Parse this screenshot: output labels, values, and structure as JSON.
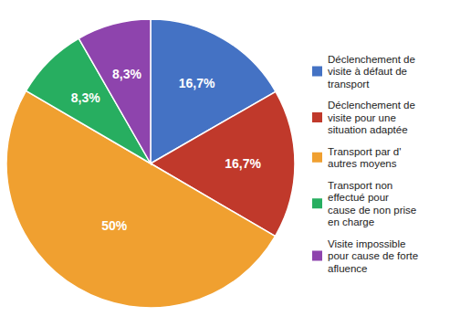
{
  "chart_data": {
    "type": "pie",
    "categories": [
      "Déclenchement de\nvisite à défaut de\ntransport",
      "Déclenchement de\nvisite pour une\nsituation adaptée",
      "Transport par d'\nautres moyens",
      "Transport non\neffectué pour\ncause de non prise\nen charge",
      "Visite impossible\npour cause de forte\nafluence"
    ],
    "values": [
      16.7,
      16.7,
      50.0,
      8.3,
      8.3
    ],
    "value_labels": [
      "16,7%",
      "16,7%",
      "50%",
      "8,3%",
      "8,3%"
    ],
    "colors": [
      "#4472C4",
      "#C0392B",
      "#F0A030",
      "#27AE60",
      "#8E44AD"
    ],
    "data_labels": true,
    "legend": "right"
  }
}
